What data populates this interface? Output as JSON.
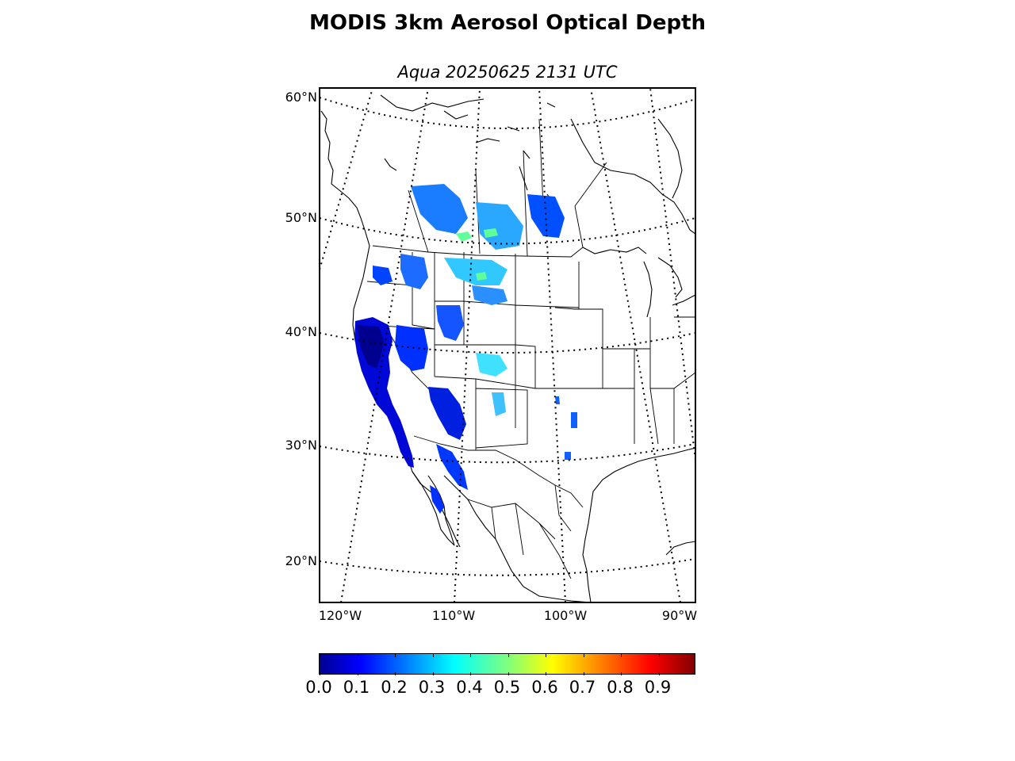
{
  "title": "MODIS 3km Aerosol Optical Depth",
  "subtitle": "Aqua 20250625 2131 UTC",
  "lat_labels": [
    "60°N",
    "50°N",
    "40°N",
    "30°N",
    "20°N"
  ],
  "lon_labels": [
    "120°W",
    "110°W",
    "100°W",
    "90°W"
  ],
  "colorbar": {
    "labels": [
      "0.0",
      "0.1",
      "0.2",
      "0.3",
      "0.4",
      "0.5",
      "0.6",
      "0.7",
      "0.8",
      "0.9"
    ],
    "colormap": "jet",
    "range": [
      0.0,
      1.0
    ]
  },
  "colors": {
    "background": "#ffffff",
    "coast": "#000000",
    "aod_low": "#00008f",
    "aod_mid": "#00ffff",
    "aod_high": "#800000"
  }
}
